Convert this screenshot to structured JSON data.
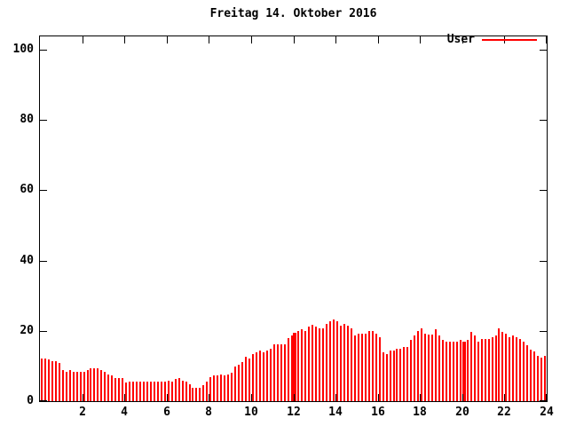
{
  "chart_data": {
    "type": "bar",
    "title": "Freitag 14. Oktober 2016",
    "xlabel": "",
    "ylabel": "",
    "xlim": [
      0,
      24
    ],
    "ylim": [
      0,
      104
    ],
    "x_ticks": [
      2,
      4,
      6,
      8,
      10,
      12,
      14,
      16,
      18,
      20,
      22,
      24
    ],
    "y_ticks": [
      0,
      20,
      40,
      60,
      80,
      100
    ],
    "grid": false,
    "legend_position": "top-right-inside",
    "x_unit": "hour_of_day",
    "interval_minutes": 10,
    "series": [
      {
        "name": "User",
        "color": "#ff0000",
        "style": "impulses",
        "values": [
          12.0,
          12.0,
          11.9,
          11.3,
          11.3,
          10.8,
          8.9,
          8.3,
          8.9,
          8.3,
          8.3,
          8.3,
          8.3,
          8.9,
          9.3,
          9.3,
          9.3,
          8.9,
          8.3,
          7.7,
          7.2,
          6.6,
          6.6,
          6.6,
          5.3,
          5.5,
          5.5,
          5.5,
          5.5,
          5.5,
          5.5,
          5.5,
          5.5,
          5.5,
          5.5,
          5.5,
          5.7,
          5.5,
          6.3,
          6.5,
          5.7,
          5.5,
          4.7,
          3.9,
          3.9,
          3.9,
          4.5,
          5.6,
          6.7,
          7.2,
          7.2,
          7.7,
          7.2,
          7.7,
          8.2,
          9.9,
          10.4,
          11.0,
          12.7,
          12.1,
          13.3,
          13.8,
          14.4,
          13.8,
          14.4,
          15.0,
          16.1,
          16.1,
          16.1,
          16.1,
          18.0,
          18.6,
          19.4,
          19.9,
          20.5,
          19.9,
          21.2,
          21.8,
          21.2,
          20.8,
          20.8,
          22.0,
          22.7,
          23.3,
          22.7,
          21.4,
          22.0,
          21.4,
          20.8,
          18.6,
          19.2,
          19.2,
          19.2,
          20.0,
          19.9,
          19.2,
          18.2,
          13.8,
          13.3,
          14.4,
          14.4,
          15.0,
          15.0,
          15.3,
          15.5,
          17.4,
          18.7,
          20.0,
          20.8,
          19.3,
          19.0,
          19.0,
          20.4,
          18.7,
          17.4,
          17.0,
          17.0,
          17.0,
          17.0,
          17.4,
          17.0,
          17.4,
          19.7,
          18.7,
          17.0,
          17.6,
          17.6,
          17.6,
          18.2,
          18.7,
          20.8,
          19.7,
          19.1,
          18.2,
          18.7,
          18.2,
          17.6,
          17.0,
          15.9,
          14.7,
          14.1,
          13.0,
          12.4,
          12.8
        ]
      }
    ],
    "double_width_bar_indices": [
      72,
      120
    ]
  },
  "colors": {
    "bar": "#ff0000",
    "axis": "#000000",
    "text": "#000000",
    "background": "#ffffff"
  }
}
